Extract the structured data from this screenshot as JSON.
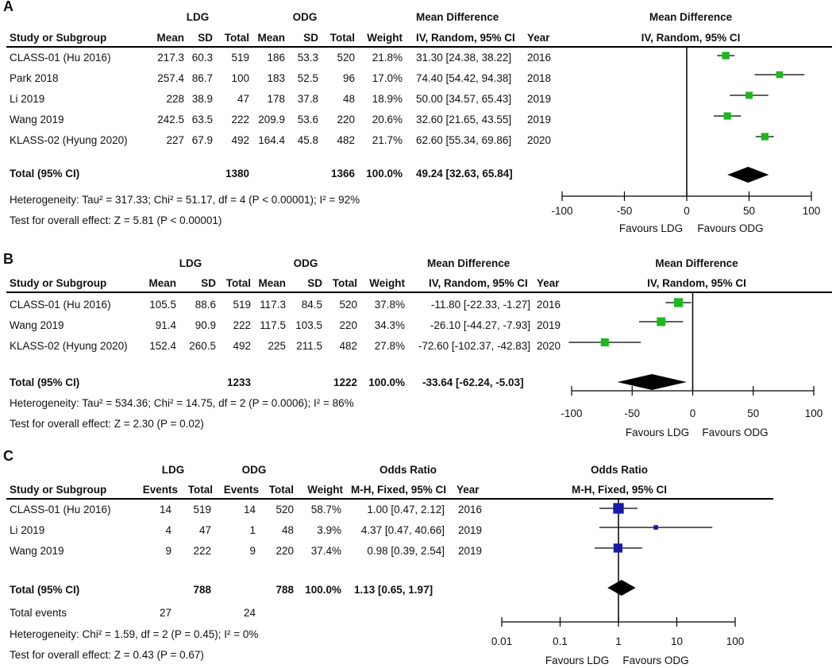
{
  "chart_data": [
    {
      "type": "table",
      "panel": "A",
      "group1": "LDG",
      "group2": "ODG",
      "effect_label": "Mean Difference",
      "method": "IV, Random, 95% CI",
      "columns": [
        "Study or Subgroup",
        "Mean",
        "SD",
        "Total",
        "Mean",
        "SD",
        "Total",
        "Weight",
        "IV, Random, 95% CI",
        "Year"
      ],
      "studies": [
        {
          "name": "CLASS-01 (Hu 2016)",
          "m1": "217.3",
          "sd1": "60.3",
          "n1": "519",
          "m2": "186",
          "sd2": "53.3",
          "n2": "520",
          "weight": "21.8%",
          "ci": "31.30 [24.38, 38.22]",
          "year": "2016",
          "est": 31.3,
          "lo": 24.38,
          "hi": 38.22,
          "w": 21.8
        },
        {
          "name": "Park 2018",
          "m1": "257.4",
          "sd1": "86.7",
          "n1": "100",
          "m2": "183",
          "sd2": "52.5",
          "n2": "96",
          "weight": "17.0%",
          "ci": "74.40 [54.42, 94.38]",
          "year": "2018",
          "est": 74.4,
          "lo": 54.42,
          "hi": 94.38,
          "w": 17.0
        },
        {
          "name": "Li 2019",
          "m1": "228",
          "sd1": "38.9",
          "n1": "47",
          "m2": "178",
          "sd2": "37.8",
          "n2": "48",
          "weight": "18.9%",
          "ci": "50.00 [34.57, 65.43]",
          "year": "2019",
          "est": 50.0,
          "lo": 34.57,
          "hi": 65.43,
          "w": 18.9
        },
        {
          "name": "Wang 2019",
          "m1": "242.5",
          "sd1": "63.5",
          "n1": "222",
          "m2": "209.9",
          "sd2": "53.6",
          "n2": "220",
          "weight": "20.6%",
          "ci": "32.60 [21.65, 43.55]",
          "year": "2019",
          "est": 32.6,
          "lo": 21.65,
          "hi": 43.55,
          "w": 20.6
        },
        {
          "name": "KLASS-02 (Hyung 2020)",
          "m1": "227",
          "sd1": "67.9",
          "n1": "492",
          "m2": "164.4",
          "sd2": "45.8",
          "n2": "482",
          "weight": "21.7%",
          "ci": "62.60 [55.34, 69.86]",
          "year": "2020",
          "est": 62.6,
          "lo": 55.34,
          "hi": 69.86,
          "w": 21.7
        }
      ],
      "total": {
        "label": "Total (95% CI)",
        "n1": "1380",
        "n2": "1366",
        "weight": "100.0%",
        "ci": "49.24 [32.63, 65.84]",
        "est": 49.24,
        "lo": 32.63,
        "hi": 65.84
      },
      "heterogeneity": "Heterogeneity: Tau² = 317.33; Chi² = 51.17, df = 4 (P < 0.00001); I² = 92%",
      "overall": "Test for overall effect: Z = 5.81 (P < 0.00001)",
      "axis": {
        "scale": "linear",
        "xlim": [
          -100,
          100
        ],
        "ticks": [
          -100,
          -50,
          0,
          50,
          100
        ],
        "tick_labels": [
          "-100",
          "-50",
          "0",
          "50",
          "100"
        ]
      },
      "favours_left": "Favours LDG",
      "favours_right": "Favours ODG",
      "marker_color": "#1db81d"
    },
    {
      "type": "table",
      "panel": "B",
      "group1": "LDG",
      "group2": "ODG",
      "effect_label": "Mean Difference",
      "method": "IV, Random, 95% CI",
      "columns": [
        "Study or Subgroup",
        "Mean",
        "SD",
        "Total",
        "Mean",
        "SD",
        "Total",
        "Weight",
        "IV, Random, 95% CI",
        "Year"
      ],
      "studies": [
        {
          "name": "CLASS-01 (Hu 2016)",
          "m1": "105.5",
          "sd1": "88.6",
          "n1": "519",
          "m2": "117.3",
          "sd2": "84.5",
          "n2": "520",
          "weight": "37.8%",
          "ci": "-11.80 [-22.33, -1.27]",
          "year": "2016",
          "est": -11.8,
          "lo": -22.33,
          "hi": -1.27,
          "w": 37.8
        },
        {
          "name": "Wang 2019",
          "m1": "91.4",
          "sd1": "90.9",
          "n1": "222",
          "m2": "117.5",
          "sd2": "103.5",
          "n2": "220",
          "weight": "34.3%",
          "ci": "-26.10 [-44.27, -7.93]",
          "year": "2019",
          "est": -26.1,
          "lo": -44.27,
          "hi": -7.93,
          "w": 34.3
        },
        {
          "name": "KLASS-02 (Hyung 2020)",
          "m1": "152.4",
          "sd1": "260.5",
          "n1": "492",
          "m2": "225",
          "sd2": "211.5",
          "n2": "482",
          "weight": "27.8%",
          "ci": "-72.60 [-102.37, -42.83]",
          "year": "2020",
          "est": -72.6,
          "lo": -102.37,
          "hi": -42.83,
          "w": 27.8
        }
      ],
      "total": {
        "label": "Total (95% CI)",
        "n1": "1233",
        "n2": "1222",
        "weight": "100.0%",
        "ci": "-33.64 [-62.24, -5.03]",
        "est": -33.64,
        "lo": -62.24,
        "hi": -5.03
      },
      "heterogeneity": "Heterogeneity: Tau² = 534.36; Chi² = 14.75, df = 2 (P = 0.0006); I² = 86%",
      "overall": "Test for overall effect: Z = 2.30 (P = 0.02)",
      "axis": {
        "scale": "linear",
        "xlim": [
          -100,
          100
        ],
        "ticks": [
          -100,
          -50,
          0,
          50,
          100
        ],
        "tick_labels": [
          "-100",
          "-50",
          "0",
          "50",
          "100"
        ]
      },
      "favours_left": "Favours LDG",
      "favours_right": "Favours ODG",
      "marker_color": "#1db81d"
    },
    {
      "type": "table",
      "panel": "C",
      "group1": "LDG",
      "group2": "ODG",
      "effect_label": "Odds Ratio",
      "method": "M-H, Fixed, 95% CI",
      "columns": [
        "Study or Subgroup",
        "Events",
        "Total",
        "Events",
        "Total",
        "Weight",
        "M-H, Fixed, 95% CI",
        "Year"
      ],
      "studies": [
        {
          "name": "CLASS-01 (Hu 2016)",
          "e1": "14",
          "n1": "519",
          "e2": "14",
          "n2": "520",
          "weight": "58.7%",
          "ci": "1.00 [0.47, 2.12]",
          "year": "2016",
          "est": 1.0,
          "lo": 0.47,
          "hi": 2.12,
          "w": 58.7
        },
        {
          "name": "Li 2019",
          "e1": "4",
          "n1": "47",
          "e2": "1",
          "n2": "48",
          "weight": "3.9%",
          "ci": "4.37 [0.47, 40.66]",
          "year": "2019",
          "est": 4.37,
          "lo": 0.47,
          "hi": 40.66,
          "w": 3.9
        },
        {
          "name": "Wang 2019",
          "e1": "9",
          "n1": "222",
          "e2": "9",
          "n2": "220",
          "weight": "37.4%",
          "ci": "0.98 [0.39, 2.54]",
          "year": "2019",
          "est": 0.98,
          "lo": 0.39,
          "hi": 2.54,
          "w": 37.4
        }
      ],
      "total": {
        "label": "Total (95% CI)",
        "n1": "788",
        "n2": "788",
        "weight": "100.0%",
        "ci": "1.13 [0.65, 1.97]",
        "est": 1.13,
        "lo": 0.65,
        "hi": 1.97
      },
      "total_events": {
        "label": "Total events",
        "e1": "27",
        "e2": "24"
      },
      "heterogeneity": "Heterogeneity: Chi² = 1.59, df = 2 (P = 0.45); I² = 0%",
      "overall": "Test for overall effect: Z = 0.43 (P = 0.67)",
      "axis": {
        "scale": "log",
        "xlim": [
          0.01,
          100
        ],
        "ticks": [
          0.01,
          0.1,
          1,
          10,
          100
        ],
        "tick_labels": [
          "0.01",
          "0.1",
          "1",
          "10",
          "100"
        ]
      },
      "favours_left": "Favours LDG",
      "favours_right": "Favours ODG",
      "marker_color": "#1a1aa8"
    }
  ]
}
